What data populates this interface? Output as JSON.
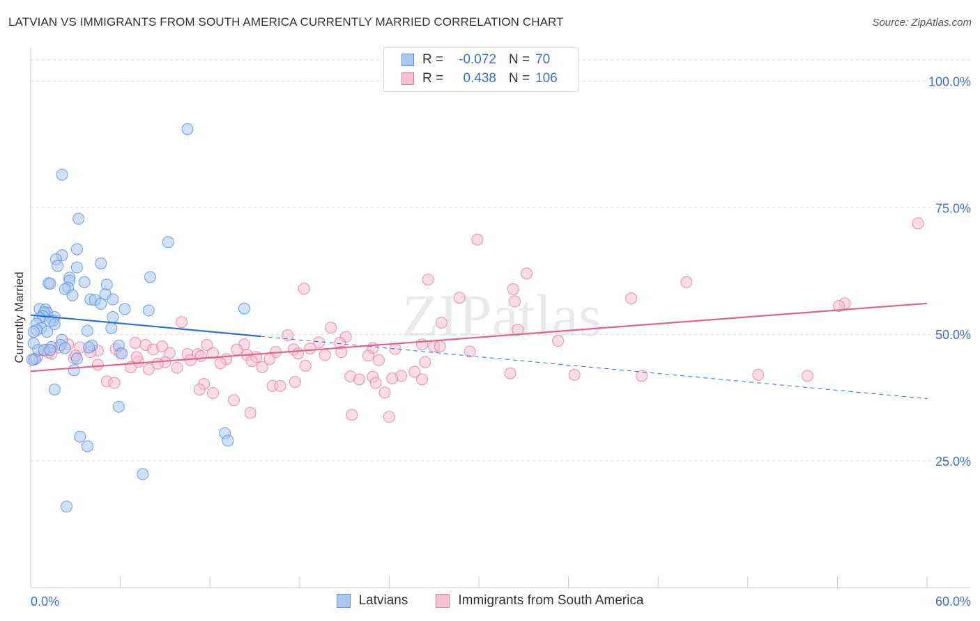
{
  "title": "LATVIAN VS IMMIGRANTS FROM SOUTH AMERICA CURRENTLY MARRIED CORRELATION CHART",
  "source": "Source: ZipAtlas.com",
  "watermark": "ZIPatlas",
  "colors": {
    "blue_fill": "#a9c8f0",
    "blue_stroke": "#5b8fd6",
    "blue_line": "#2f6fd0",
    "pink_fill": "#f5c0d2",
    "pink_stroke": "#e07fa0",
    "pink_line": "#e0628f",
    "axis_text": "#3a6fc4",
    "grid": "#dddddd"
  },
  "legend": {
    "rows": [
      {
        "r_label": "R =",
        "r_value": "-0.072",
        "n_label": "N =",
        "n_value": "70"
      },
      {
        "r_label": "R =",
        "r_value": "0.438",
        "n_label": "N =",
        "n_value": "106"
      }
    ]
  },
  "bottom_legend": {
    "series1": "Latvians",
    "series2": "Immigrants from South America"
  },
  "chart_data": {
    "type": "scatter",
    "title": "LATVIAN VS IMMIGRANTS FROM SOUTH AMERICA CURRENTLY MARRIED CORRELATION CHART",
    "xlabel": "",
    "ylabel": "Currently Married",
    "xlim": [
      0,
      60
    ],
    "ylim": [
      0,
      105
    ],
    "x_tick_labels": [
      "0.0%",
      "60.0%"
    ],
    "y_ticks": [
      25,
      50,
      75,
      100
    ],
    "y_tick_labels": [
      "25.0%",
      "50.0%",
      "75.0%",
      "100.0%"
    ],
    "grid": true,
    "series": [
      {
        "name": "Latvians",
        "r": -0.072,
        "n": 70,
        "trend": {
          "x0": 0,
          "y0": 53.8,
          "x1": 15.4,
          "y1": 49.6,
          "dashed_to_x": 60,
          "dashed_to_y": 37.3
        },
        "points": [
          [
            10.5,
            90.5
          ],
          [
            2.1,
            81.5
          ],
          [
            3.2,
            72.8
          ],
          [
            9.2,
            68.2
          ],
          [
            3.1,
            66.8
          ],
          [
            2.1,
            65.6
          ],
          [
            1.7,
            64.8
          ],
          [
            4.7,
            64.0
          ],
          [
            1.8,
            63.5
          ],
          [
            3.1,
            63.2
          ],
          [
            8.0,
            61.3
          ],
          [
            2.6,
            61.2
          ],
          [
            1.2,
            60.1
          ],
          [
            1.3,
            60.0
          ],
          [
            2.6,
            60.6
          ],
          [
            3.6,
            60.3
          ],
          [
            5.1,
            59.8
          ],
          [
            2.5,
            59.2
          ],
          [
            2.3,
            58.9
          ],
          [
            5.0,
            57.9
          ],
          [
            2.8,
            57.7
          ],
          [
            4.0,
            56.9
          ],
          [
            4.3,
            56.8
          ],
          [
            5.5,
            56.9
          ],
          [
            4.7,
            56.0
          ],
          [
            6.3,
            55.0
          ],
          [
            7.9,
            54.7
          ],
          [
            14.3,
            55.1
          ],
          [
            0.6,
            55.0
          ],
          [
            1.0,
            54.9
          ],
          [
            1.1,
            54.3
          ],
          [
            0.9,
            54.3
          ],
          [
            0.8,
            53.6
          ],
          [
            1.6,
            53.4
          ],
          [
            0.6,
            53.2
          ],
          [
            1.5,
            52.7
          ],
          [
            1.3,
            52.6
          ],
          [
            5.5,
            53.4
          ],
          [
            0.4,
            52.1
          ],
          [
            1.6,
            52.0
          ],
          [
            0.7,
            51.2
          ],
          [
            0.4,
            50.8
          ],
          [
            1.1,
            50.5
          ],
          [
            3.8,
            50.7
          ],
          [
            5.4,
            51.2
          ],
          [
            2.1,
            48.9
          ],
          [
            0.2,
            48.2
          ],
          [
            2.0,
            47.9
          ],
          [
            4.1,
            47.8
          ],
          [
            5.9,
            47.8
          ],
          [
            1.4,
            47.5
          ],
          [
            2.3,
            47.3
          ],
          [
            3.9,
            47.4
          ],
          [
            0.5,
            46.9
          ],
          [
            0.9,
            46.9
          ],
          [
            1.3,
            46.9
          ],
          [
            0.3,
            45.1
          ],
          [
            3.1,
            45.2
          ],
          [
            6.1,
            46.2
          ],
          [
            2.9,
            42.9
          ],
          [
            1.6,
            39.1
          ],
          [
            5.9,
            35.7
          ],
          [
            13.0,
            30.5
          ],
          [
            13.2,
            29.0
          ],
          [
            3.3,
            29.8
          ],
          [
            3.8,
            27.9
          ],
          [
            7.5,
            22.4
          ],
          [
            2.4,
            16.0
          ],
          [
            0.1,
            45.0
          ],
          [
            0.2,
            50.5
          ]
        ]
      },
      {
        "name": "Immigrants from South America",
        "r": 0.438,
        "n": 106,
        "trend": {
          "x0": 0,
          "y0": 42.7,
          "x1": 60,
          "y1": 56.1
        },
        "points": [
          [
            59.4,
            71.9
          ],
          [
            29.9,
            68.7
          ],
          [
            33.2,
            62.0
          ],
          [
            26.6,
            60.8
          ],
          [
            43.9,
            60.3
          ],
          [
            18.3,
            59.0
          ],
          [
            32.3,
            58.9
          ],
          [
            28.7,
            57.2
          ],
          [
            40.2,
            57.1
          ],
          [
            32.4,
            56.5
          ],
          [
            54.5,
            56.1
          ],
          [
            54.1,
            55.6
          ],
          [
            10.1,
            52.4
          ],
          [
            27.5,
            52.3
          ],
          [
            20.1,
            51.3
          ],
          [
            32.6,
            50.9
          ],
          [
            17.2,
            49.8
          ],
          [
            21.1,
            49.5
          ],
          [
            7.0,
            48.3
          ],
          [
            19.3,
            48.4
          ],
          [
            20.7,
            48.3
          ],
          [
            35.3,
            48.7
          ],
          [
            2.5,
            48.0
          ],
          [
            26.2,
            48.0
          ],
          [
            7.7,
            47.9
          ],
          [
            11.8,
            47.9
          ],
          [
            14.3,
            48.0
          ],
          [
            27.0,
            47.6
          ],
          [
            1.9,
            47.4
          ],
          [
            3.3,
            47.4
          ],
          [
            5.7,
            47.1
          ],
          [
            8.2,
            47.0
          ],
          [
            17.6,
            47.0
          ],
          [
            1.1,
            47.0
          ],
          [
            0.9,
            46.8
          ],
          [
            4.5,
            46.8
          ],
          [
            1.2,
            46.4
          ],
          [
            24.4,
            47.1
          ],
          [
            13.8,
            47.0
          ],
          [
            22.9,
            47.3
          ],
          [
            29.4,
            46.6
          ],
          [
            6.0,
            46.3
          ],
          [
            9.3,
            46.3
          ],
          [
            4.0,
            46.5
          ],
          [
            16.4,
            46.5
          ],
          [
            12.2,
            46.3
          ],
          [
            10.5,
            46.1
          ],
          [
            11.2,
            46.1
          ],
          [
            11.4,
            45.7
          ],
          [
            14.5,
            45.9
          ],
          [
            15.1,
            45.5
          ],
          [
            17.9,
            46.2
          ],
          [
            22.6,
            45.8
          ],
          [
            0.4,
            45.4
          ],
          [
            2.9,
            45.3
          ],
          [
            10.7,
            44.9
          ],
          [
            13.1,
            45.1
          ],
          [
            16.0,
            45.1
          ],
          [
            23.3,
            44.9
          ],
          [
            7.2,
            44.6
          ],
          [
            9.0,
            44.5
          ],
          [
            8.5,
            44.2
          ],
          [
            6.7,
            43.5
          ],
          [
            12.7,
            44.3
          ],
          [
            15.5,
            43.5
          ],
          [
            18.4,
            43.8
          ],
          [
            9.8,
            43.4
          ],
          [
            7.9,
            43.1
          ],
          [
            25.7,
            42.6
          ],
          [
            32.1,
            42.3
          ],
          [
            48.7,
            42.0
          ],
          [
            40.9,
            41.8
          ],
          [
            21.4,
            41.7
          ],
          [
            22.9,
            41.6
          ],
          [
            24.8,
            41.8
          ],
          [
            22.0,
            41.1
          ],
          [
            24.2,
            41.3
          ],
          [
            26.2,
            41.1
          ],
          [
            23.1,
            40.4
          ],
          [
            17.7,
            40.6
          ],
          [
            5.1,
            40.7
          ],
          [
            5.6,
            40.4
          ],
          [
            11.6,
            40.2
          ],
          [
            16.2,
            39.8
          ],
          [
            16.7,
            39.8
          ],
          [
            11.3,
            39.1
          ],
          [
            12.2,
            38.4
          ],
          [
            23.7,
            38.5
          ],
          [
            13.6,
            37.0
          ],
          [
            14.7,
            34.5
          ],
          [
            21.5,
            34.1
          ],
          [
            24.0,
            33.7
          ],
          [
            3.0,
            45.8
          ],
          [
            1.4,
            46.2
          ],
          [
            36.4,
            42.0
          ],
          [
            52.0,
            41.8
          ],
          [
            7.1,
            45.5
          ],
          [
            4.5,
            44.0
          ],
          [
            18.7,
            47.2
          ],
          [
            14.8,
            44.7
          ],
          [
            19.7,
            45.9
          ],
          [
            27.4,
            47.6
          ],
          [
            20.8,
            46.5
          ],
          [
            8.8,
            47.6
          ],
          [
            26.4,
            44.5
          ],
          [
            0.2,
            45.0
          ]
        ]
      }
    ]
  }
}
